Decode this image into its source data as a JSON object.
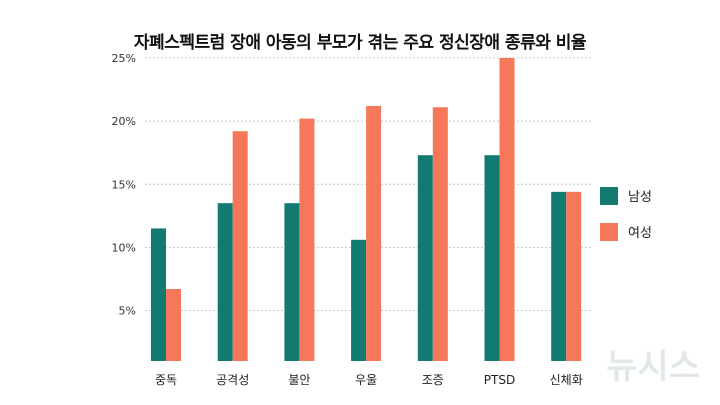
{
  "chart_data": {
    "type": "bar",
    "title": "자폐스펙트럼 장애 아동의 부모가 겪는 주요 정신장애 종류와 비율",
    "categories": [
      "중독",
      "공격성",
      "불안",
      "우울",
      "조증",
      "PTSD",
      "신체화"
    ],
    "series": [
      {
        "name": "남성",
        "color": "#137a72",
        "values": [
          11.5,
          13.5,
          13.5,
          10.6,
          17.3,
          17.3,
          14.4
        ]
      },
      {
        "name": "여성",
        "color": "#f7775a",
        "values": [
          6.7,
          19.2,
          20.2,
          21.2,
          21.1,
          25.0,
          14.4
        ]
      }
    ],
    "yticks": [
      "5%",
      "10%",
      "15%",
      "20%",
      "25%"
    ],
    "ytick_values": [
      5,
      10,
      15,
      20,
      25
    ],
    "ylim": [
      1,
      25
    ],
    "grid": true,
    "legend": "right",
    "watermark": "뉴시스"
  }
}
